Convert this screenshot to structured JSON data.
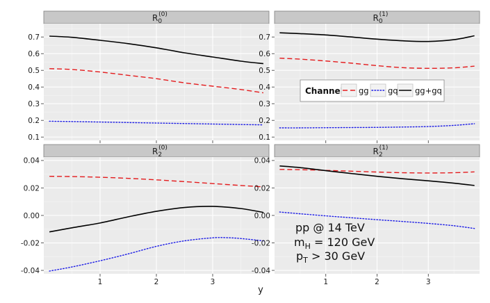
{
  "chart_data": {
    "type": "line",
    "xlabel": "y",
    "x_ticks": [
      1,
      2,
      3
    ],
    "legend": {
      "title": "Channel",
      "entries": [
        {
          "label": "gg",
          "color": "#e41a1c",
          "dash": "dashed"
        },
        {
          "label": "gq",
          "color": "#1a1ae6",
          "dash": "dotted"
        },
        {
          "label": "gg+gq",
          "color": "#000000",
          "dash": "solid"
        }
      ]
    },
    "annotation": {
      "line1": "pp @ 14 TeV",
      "line2_main": "m",
      "line2_sub": "H",
      "line2_rest": " = 120 GeV",
      "line3_main": "p",
      "line3_sub": "T",
      "line3_rest": " > 30 GeV"
    },
    "panels": [
      {
        "id": "R0_0",
        "title_main": "R",
        "title_sub": "0",
        "title_sup": "(0)",
        "xlim": [
          0.0,
          4.0
        ],
        "ylim": [
          0.08,
          0.78
        ],
        "y_ticks": [
          0.1,
          0.2,
          0.3,
          0.4,
          0.5,
          0.6,
          0.7
        ],
        "y_tick_labels": [
          "0.1",
          "0.2",
          "0.3",
          "0.4",
          "0.5",
          "0.6",
          "0.7"
        ],
        "series": [
          {
            "name": "gg",
            "x": [
              0.1,
              0.5,
              1.0,
              1.5,
              2.0,
              2.5,
              3.0,
              3.5,
              3.9
            ],
            "y": [
              0.51,
              0.505,
              0.49,
              0.47,
              0.45,
              0.425,
              0.405,
              0.385,
              0.365
            ]
          },
          {
            "name": "gq",
            "x": [
              0.1,
              0.5,
              1.0,
              1.5,
              2.0,
              2.5,
              3.0,
              3.5,
              3.9
            ],
            "y": [
              0.195,
              0.193,
              0.19,
              0.187,
              0.184,
              0.181,
              0.178,
              0.175,
              0.173
            ]
          },
          {
            "name": "gg+gq",
            "x": [
              0.1,
              0.5,
              1.0,
              1.5,
              2.0,
              2.5,
              3.0,
              3.5,
              3.9
            ],
            "y": [
              0.705,
              0.698,
              0.68,
              0.66,
              0.635,
              0.605,
              0.58,
              0.555,
              0.54
            ]
          }
        ]
      },
      {
        "id": "R0_1",
        "title_main": "R",
        "title_sub": "0",
        "title_sup": "(1)",
        "xlim": [
          0.0,
          4.0
        ],
        "ylim": [
          0.08,
          0.78
        ],
        "y_ticks": [
          0.1,
          0.2,
          0.3,
          0.4,
          0.5,
          0.6,
          0.7
        ],
        "y_tick_labels": [
          "0.1",
          "0.2",
          "0.3",
          "0.4",
          "0.5",
          "0.6",
          "0.7"
        ],
        "series": [
          {
            "name": "gg",
            "x": [
              0.1,
              0.5,
              1.0,
              1.5,
              2.0,
              2.5,
              3.0,
              3.5,
              3.9
            ],
            "y": [
              0.573,
              0.567,
              0.556,
              0.543,
              0.528,
              0.516,
              0.512,
              0.515,
              0.525
            ]
          },
          {
            "name": "gq",
            "x": [
              0.1,
              0.5,
              1.0,
              1.5,
              2.0,
              2.5,
              3.0,
              3.5,
              3.9
            ],
            "y": [
              0.155,
              0.155,
              0.156,
              0.157,
              0.158,
              0.16,
              0.163,
              0.17,
              0.18
            ]
          },
          {
            "name": "gg+gq",
            "x": [
              0.1,
              0.5,
              1.0,
              1.5,
              2.0,
              2.5,
              3.0,
              3.5,
              3.9
            ],
            "y": [
              0.725,
              0.72,
              0.712,
              0.7,
              0.687,
              0.677,
              0.673,
              0.684,
              0.707
            ]
          }
        ]
      },
      {
        "id": "R2_0",
        "title_main": "R",
        "title_sub": "2",
        "title_sup": "(0)",
        "xlim": [
          0.0,
          4.0
        ],
        "ylim": [
          -0.0425,
          0.0425
        ],
        "y_ticks": [
          -0.04,
          -0.02,
          0.0,
          0.02,
          0.04
        ],
        "y_tick_labels": [
          "-0.04",
          "-0.02",
          "0.00",
          "0.02",
          "0.04"
        ],
        "series": [
          {
            "name": "gg",
            "x": [
              0.1,
              0.5,
              1.0,
              1.5,
              2.0,
              2.5,
              3.0,
              3.5,
              3.9
            ],
            "y": [
              0.0285,
              0.0283,
              0.0278,
              0.027,
              0.0259,
              0.0246,
              0.0232,
              0.0218,
              0.0208
            ]
          },
          {
            "name": "gq",
            "x": [
              0.1,
              0.5,
              1.0,
              1.5,
              2.0,
              2.5,
              3.0,
              3.25,
              3.5,
              3.9
            ],
            "y": [
              -0.0405,
              -0.0375,
              -0.033,
              -0.028,
              -0.0225,
              -0.0185,
              -0.0163,
              -0.0162,
              -0.0168,
              -0.0185
            ]
          },
          {
            "name": "gg+gq",
            "x": [
              0.1,
              0.5,
              1.0,
              1.5,
              2.0,
              2.5,
              3.0,
              3.5,
              3.9
            ],
            "y": [
              -0.012,
              -0.009,
              -0.0055,
              -0.001,
              0.003,
              0.0058,
              0.0066,
              0.005,
              0.0022
            ]
          }
        ]
      },
      {
        "id": "R2_1",
        "title_main": "R",
        "title_sub": "2",
        "title_sup": "(1)",
        "xlim": [
          0.0,
          4.0
        ],
        "ylim": [
          -0.0425,
          0.0425
        ],
        "y_ticks": [
          -0.04,
          -0.02,
          0.0,
          0.02,
          0.04
        ],
        "y_tick_labels": [
          "-0.04",
          "-0.02",
          "0.00",
          "0.02",
          "0.04"
        ],
        "series": [
          {
            "name": "gg",
            "x": [
              0.1,
              0.5,
              1.0,
              1.5,
              2.0,
              2.5,
              3.0,
              3.5,
              3.9
            ],
            "y": [
              0.0335,
              0.0333,
              0.0328,
              0.0322,
              0.0316,
              0.0311,
              0.0309,
              0.0311,
              0.0317
            ]
          },
          {
            "name": "gq",
            "x": [
              0.1,
              0.5,
              1.0,
              1.5,
              2.0,
              2.5,
              3.0,
              3.5,
              3.9
            ],
            "y": [
              0.0025,
              0.0012,
              -0.0003,
              -0.0017,
              -0.0031,
              -0.0044,
              -0.0058,
              -0.0075,
              -0.0095
            ]
          },
          {
            "name": "gg+gq",
            "x": [
              0.1,
              0.5,
              1.0,
              1.5,
              2.0,
              2.5,
              3.0,
              3.5,
              3.9
            ],
            "y": [
              0.036,
              0.0348,
              0.0326,
              0.0305,
              0.0285,
              0.0267,
              0.0252,
              0.0235,
              0.0218
            ]
          }
        ]
      }
    ]
  }
}
